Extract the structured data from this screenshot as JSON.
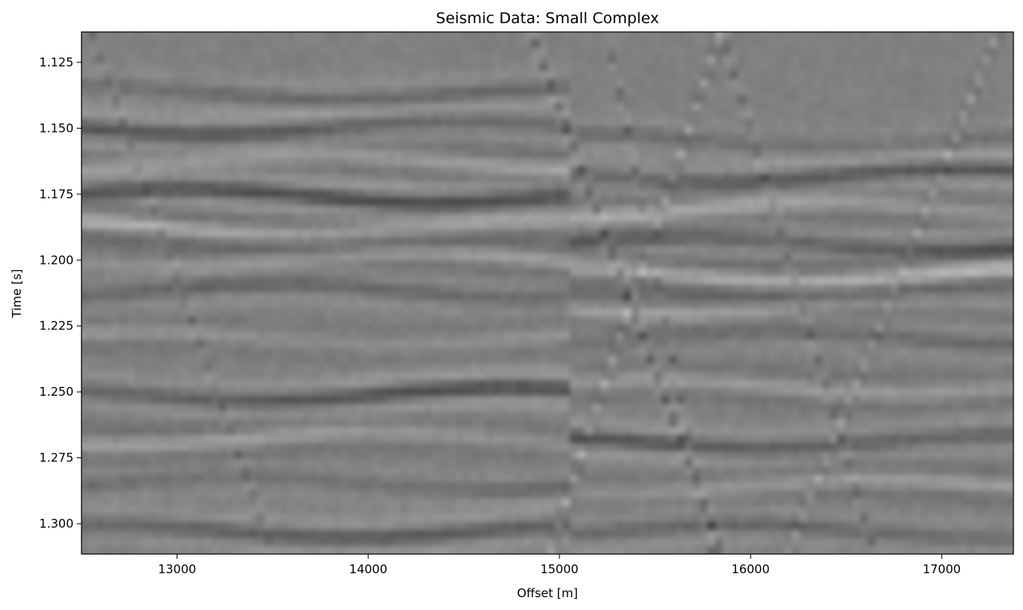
{
  "chart_data": {
    "type": "heatmap",
    "title": "Seismic Data: Small Complex",
    "xlabel": "Offset [m]",
    "ylabel": "Time [s]",
    "colormap": "grayscale",
    "xlim": [
      12500,
      17375
    ],
    "ylim": [
      1.1135,
      1.3115
    ],
    "y_inverted": true,
    "grid": false,
    "x_ticks": [
      13000,
      14000,
      15000,
      16000,
      17000
    ],
    "x_tick_labels": [
      "13000",
      "14000",
      "15000",
      "16000",
      "17000"
    ],
    "y_ticks": [
      1.125,
      1.15,
      1.175,
      1.2,
      1.225,
      1.25,
      1.275,
      1.3
    ],
    "y_tick_labels": [
      "1.125",
      "1.150",
      "1.175",
      "1.200",
      "1.225",
      "1.250",
      "1.275",
      "1.300"
    ],
    "reflectors": [
      {
        "t": 1.137,
        "amplitude": -0.3
      },
      {
        "t": 1.15,
        "amplitude": -0.5
      },
      {
        "t": 1.163,
        "amplitude": 0.4
      },
      {
        "t": 1.176,
        "amplitude": -0.6
      },
      {
        "t": 1.188,
        "amplitude": 0.55
      },
      {
        "t": 1.2,
        "amplitude": 0.35
      },
      {
        "t": 1.212,
        "amplitude": -0.3
      },
      {
        "t": 1.23,
        "amplitude": 0.3
      },
      {
        "t": 1.251,
        "amplitude": -0.6
      },
      {
        "t": 1.268,
        "amplitude": 0.35
      },
      {
        "t": 1.285,
        "amplitude": -0.3
      },
      {
        "t": 1.303,
        "amplitude": -0.45
      }
    ],
    "dipping_events": [
      {
        "x0": 14850,
        "t0": 1.113,
        "x1": 15850,
        "t1": 1.311,
        "amplitude": -0.45
      },
      {
        "x0": 15850,
        "t0": 1.113,
        "x1": 14950,
        "t1": 1.311,
        "amplitude": 0.4
      },
      {
        "x0": 15250,
        "t0": 1.113,
        "x1": 15800,
        "t1": 1.311,
        "amplitude": -0.35
      },
      {
        "x0": 15850,
        "t0": 1.113,
        "x1": 16650,
        "t1": 1.311,
        "amplitude": -0.35
      },
      {
        "x0": 17300,
        "t0": 1.113,
        "x1": 16200,
        "t1": 1.311,
        "amplitude": 0.3
      },
      {
        "x0": 12550,
        "t0": 1.113,
        "x1": 13500,
        "t1": 1.311,
        "amplitude": -0.25
      }
    ],
    "fault": {
      "x": 15050,
      "throw_t": 0.018
    }
  }
}
